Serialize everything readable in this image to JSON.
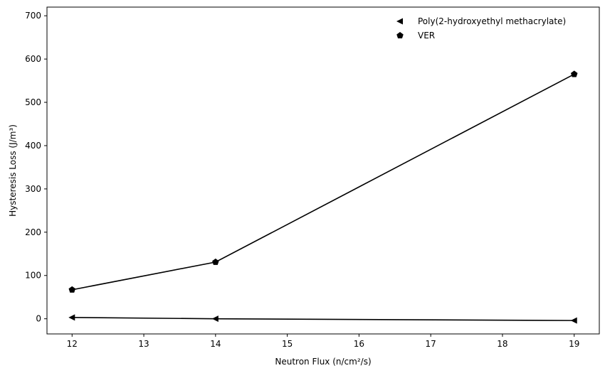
{
  "chart_data": {
    "type": "line",
    "xlabel": "Neutron Flux (n/cm²/s)",
    "ylabel": "Hysteresis Loss (J/m³)",
    "xlim": [
      11.65,
      19.35
    ],
    "ylim": [
      -35,
      720
    ],
    "xticks": [
      12,
      13,
      14,
      15,
      16,
      17,
      18,
      19
    ],
    "yticks": [
      0,
      100,
      200,
      300,
      400,
      500,
      600,
      700
    ],
    "legend_position": "top-right",
    "grid": false,
    "series": [
      {
        "name": "Poly(2-hydroxyethyl methacrylate)",
        "marker": "triangle-left",
        "color": "#000000",
        "x": [
          12,
          14,
          19
        ],
        "y": [
          3,
          0,
          -4
        ]
      },
      {
        "name": "VER",
        "marker": "pentagon",
        "color": "#000000",
        "x": [
          12,
          14,
          19
        ],
        "y": [
          67,
          131,
          565
        ]
      }
    ]
  }
}
